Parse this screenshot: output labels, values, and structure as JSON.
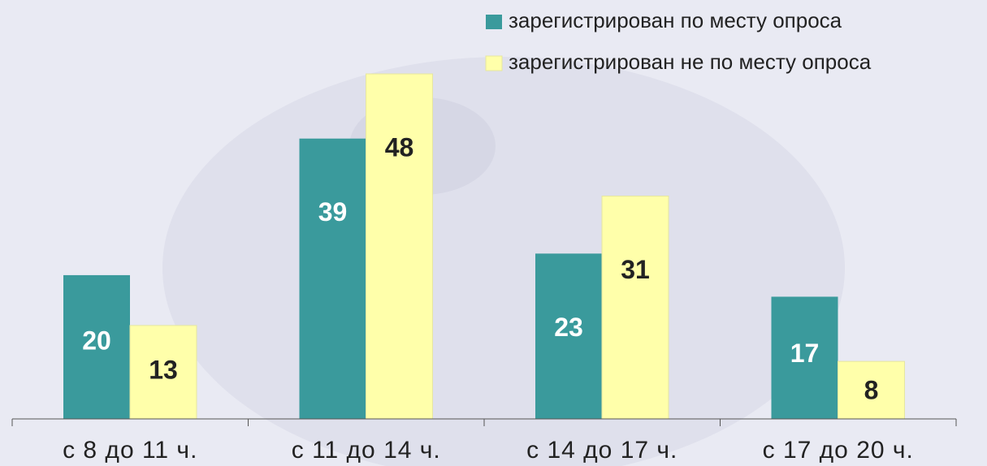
{
  "chart_data": {
    "type": "bar",
    "categories": [
      "с 8 до 11 ч.",
      "с 11 до 14 ч.",
      "с 14 до 17 ч.",
      "с 17 до 20 ч."
    ],
    "series": [
      {
        "name": "зарегистрирован по месту опроса",
        "color": "#3a9a9c",
        "values": [
          20,
          39,
          23,
          17
        ]
      },
      {
        "name": "зарегистрирован не по месту опроса",
        "color": "#ffffaa",
        "values": [
          13,
          48,
          31,
          8
        ]
      }
    ],
    "legend": "top-right"
  }
}
